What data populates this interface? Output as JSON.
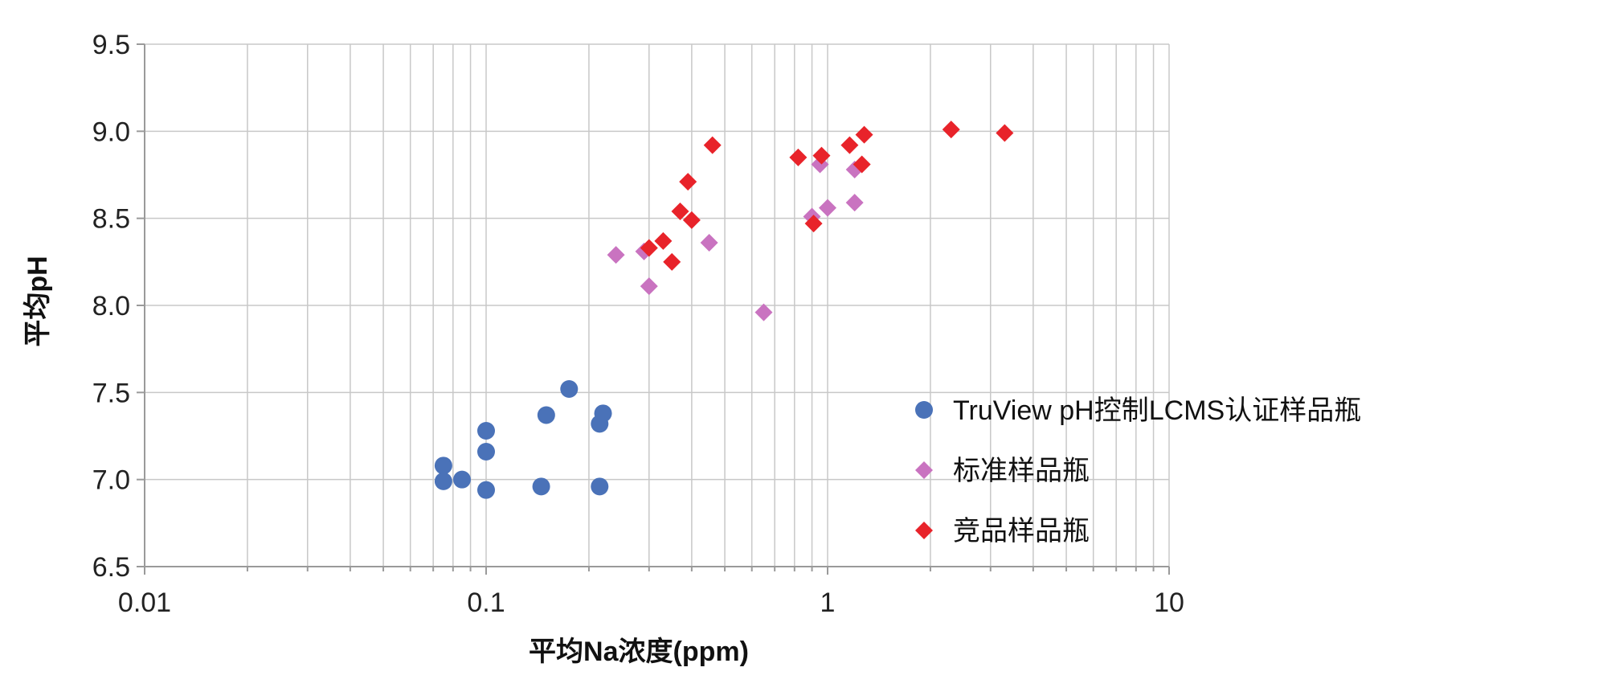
{
  "chart_data": {
    "type": "scatter",
    "xlabel": "平均Na浓度(ppm)",
    "ylabel": "平均pH",
    "xscale": "log",
    "xlim": [
      0.01,
      10
    ],
    "ylim": [
      6.5,
      9.5
    ],
    "xticks": [
      {
        "value": 0.01,
        "label": "0.01"
      },
      {
        "value": 0.1,
        "label": "0.1"
      },
      {
        "value": 1,
        "label": "1"
      },
      {
        "value": 10,
        "label": "10"
      }
    ],
    "yticks": [
      {
        "value": 6.5,
        "label": "6.5"
      },
      {
        "value": 7.0,
        "label": "7.0"
      },
      {
        "value": 7.5,
        "label": "7.5"
      },
      {
        "value": 8.0,
        "label": "8.0"
      },
      {
        "value": 8.5,
        "label": "8.5"
      },
      {
        "value": 9.0,
        "label": "9.0"
      },
      {
        "value": 9.5,
        "label": "9.5"
      }
    ],
    "grid": true,
    "legend_position": "right",
    "series": [
      {
        "name": "TruView pH控制LCMS认证样品瓶",
        "marker": "circle",
        "color": "#4a72b8",
        "points": [
          {
            "x": 0.075,
            "y": 7.08
          },
          {
            "x": 0.075,
            "y": 6.99
          },
          {
            "x": 0.085,
            "y": 7.0
          },
          {
            "x": 0.1,
            "y": 7.28
          },
          {
            "x": 0.1,
            "y": 7.16
          },
          {
            "x": 0.1,
            "y": 6.94
          },
          {
            "x": 0.145,
            "y": 6.96
          },
          {
            "x": 0.15,
            "y": 7.37
          },
          {
            "x": 0.175,
            "y": 7.52
          },
          {
            "x": 0.215,
            "y": 7.32
          },
          {
            "x": 0.22,
            "y": 7.38
          },
          {
            "x": 0.215,
            "y": 6.96
          }
        ]
      },
      {
        "name": "标准样品瓶",
        "marker": "diamond",
        "color": "#c973c0",
        "points": [
          {
            "x": 0.24,
            "y": 8.29
          },
          {
            "x": 0.29,
            "y": 8.31
          },
          {
            "x": 0.3,
            "y": 8.11
          },
          {
            "x": 0.45,
            "y": 8.36
          },
          {
            "x": 0.65,
            "y": 7.96
          },
          {
            "x": 0.9,
            "y": 8.51
          },
          {
            "x": 0.95,
            "y": 8.81
          },
          {
            "x": 1.0,
            "y": 8.56
          },
          {
            "x": 1.2,
            "y": 8.59
          },
          {
            "x": 1.2,
            "y": 8.78
          }
        ]
      },
      {
        "name": "竞品样品瓶",
        "marker": "diamond",
        "color": "#e8232a",
        "points": [
          {
            "x": 0.3,
            "y": 8.33
          },
          {
            "x": 0.33,
            "y": 8.37
          },
          {
            "x": 0.35,
            "y": 8.25
          },
          {
            "x": 0.37,
            "y": 8.54
          },
          {
            "x": 0.39,
            "y": 8.71
          },
          {
            "x": 0.4,
            "y": 8.49
          },
          {
            "x": 0.46,
            "y": 8.92
          },
          {
            "x": 0.82,
            "y": 8.85
          },
          {
            "x": 0.91,
            "y": 8.47
          },
          {
            "x": 0.96,
            "y": 8.86
          },
          {
            "x": 1.16,
            "y": 8.92
          },
          {
            "x": 1.26,
            "y": 8.81
          },
          {
            "x": 1.28,
            "y": 8.98
          },
          {
            "x": 2.3,
            "y": 9.01
          },
          {
            "x": 3.3,
            "y": 8.99
          }
        ]
      }
    ]
  }
}
